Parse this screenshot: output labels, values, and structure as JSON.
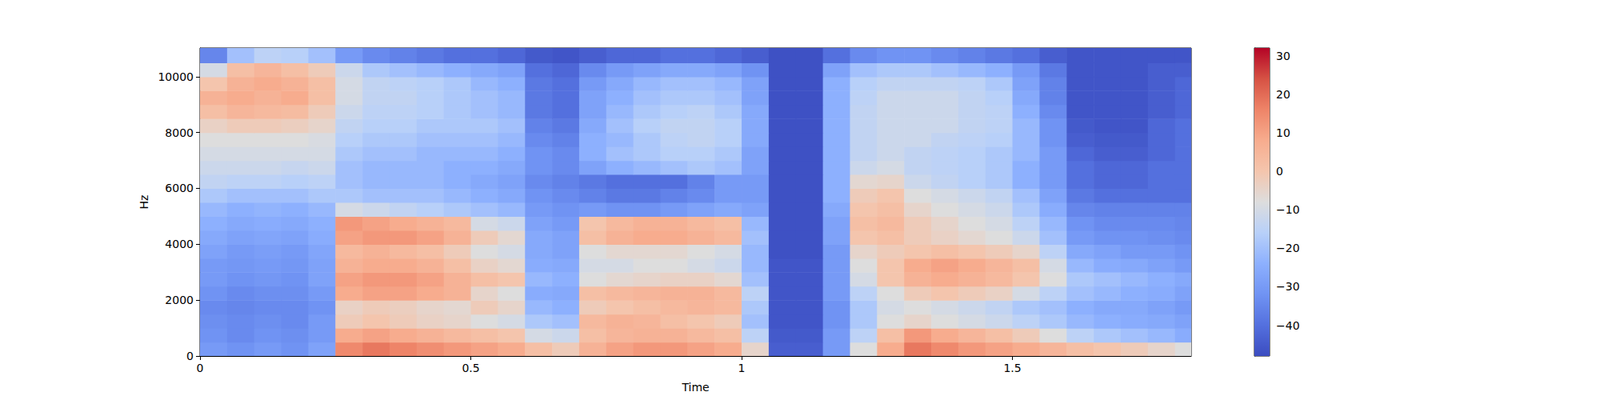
{
  "chart_data": {
    "type": "heatmap",
    "xlabel": "Time",
    "ylabel": "Hz",
    "xlim": [
      0,
      1.83
    ],
    "xticks": [
      0,
      0.5,
      1,
      1.5
    ],
    "ylim": [
      0,
      11025
    ],
    "yticks": [
      0,
      2000,
      4000,
      6000,
      8000,
      10000
    ],
    "grid": false,
    "time_bins": [
      0,
      0.05,
      0.1,
      0.15,
      0.2,
      0.25,
      0.3,
      0.35,
      0.4,
      0.45,
      0.5,
      0.55,
      0.6,
      0.65,
      0.7,
      0.75,
      0.8,
      0.85,
      0.9,
      0.95,
      1.0,
      1.05,
      1.1,
      1.15,
      1.2,
      1.25,
      1.3,
      1.35,
      1.4,
      1.45,
      1.5,
      1.55,
      1.6,
      1.65,
      1.7,
      1.75,
      1.8,
      1.83
    ],
    "freq_bins": [
      0,
      500,
      1000,
      1500,
      2000,
      2500,
      3000,
      3500,
      4000,
      4500,
      5000,
      5500,
      6000,
      6500,
      7000,
      7500,
      8000,
      8500,
      9000,
      9500,
      10000,
      10500,
      11025
    ],
    "cells": [
      [
        -30,
        -32,
        -30,
        -32,
        -28,
        15,
        18,
        16,
        14,
        12,
        10,
        8,
        2,
        -2,
        6,
        10,
        12,
        12,
        10,
        8,
        -5,
        -44,
        -44,
        -30,
        -8,
        8,
        18,
        15,
        12,
        10,
        8,
        5,
        2,
        0,
        -2,
        -5,
        -8
      ],
      [
        -32,
        -34,
        -32,
        -33,
        -30,
        8,
        10,
        8,
        6,
        4,
        2,
        0,
        -10,
        -12,
        2,
        5,
        6,
        6,
        4,
        2,
        -15,
        -45,
        -45,
        -30,
        -15,
        2,
        12,
        8,
        5,
        2,
        -2,
        -8,
        -15,
        -18,
        -20,
        -22,
        -25
      ],
      [
        -33,
        -34,
        -33,
        -34,
        -30,
        -2,
        0,
        -2,
        -4,
        -5,
        -8,
        -10,
        -18,
        -20,
        4,
        6,
        5,
        2,
        0,
        -2,
        -20,
        -46,
        -46,
        -32,
        -18,
        -8,
        -5,
        -8,
        -10,
        -12,
        -15,
        -18,
        -22,
        -24,
        -25,
        -26,
        -28
      ],
      [
        -34,
        -35,
        -34,
        -34,
        -32,
        -4,
        -2,
        -3,
        -5,
        -6,
        -2,
        -5,
        -22,
        -24,
        -2,
        0,
        2,
        4,
        5,
        4,
        -18,
        -46,
        -46,
        -32,
        -18,
        -10,
        -8,
        -10,
        -12,
        -14,
        -18,
        -20,
        -24,
        -26,
        -26,
        -28,
        -30
      ],
      [
        -32,
        -34,
        -33,
        -33,
        -30,
        8,
        10,
        10,
        8,
        6,
        -5,
        -8,
        -25,
        -26,
        2,
        4,
        5,
        6,
        6,
        4,
        -15,
        -46,
        -46,
        -30,
        -15,
        -8,
        -2,
        0,
        -2,
        -4,
        -10,
        -15,
        -20,
        -22,
        -24,
        -25,
        -28
      ],
      [
        -30,
        -32,
        -31,
        -32,
        -28,
        10,
        12,
        12,
        10,
        6,
        2,
        0,
        -22,
        -24,
        -8,
        -6,
        -5,
        -4,
        -4,
        -6,
        -20,
        -46,
        -46,
        -30,
        -10,
        0,
        6,
        8,
        6,
        4,
        0,
        -8,
        -18,
        -20,
        -22,
        -24,
        -26
      ],
      [
        -30,
        -31,
        -30,
        -31,
        -28,
        6,
        8,
        8,
        6,
        2,
        -4,
        -6,
        -25,
        -26,
        -10,
        -10,
        -8,
        -8,
        -10,
        -12,
        -22,
        -46,
        -46,
        -30,
        -8,
        0,
        8,
        10,
        8,
        5,
        2,
        -10,
        -22,
        -25,
        -26,
        -28,
        -30
      ],
      [
        -28,
        -30,
        -29,
        -30,
        -27,
        4,
        6,
        4,
        2,
        -2,
        -8,
        -10,
        -26,
        -28,
        -8,
        -6,
        -6,
        -6,
        -8,
        -10,
        -22,
        -47,
        -47,
        -30,
        -5,
        -2,
        0,
        2,
        0,
        -2,
        -5,
        -15,
        -26,
        -28,
        -30,
        -30,
        -32
      ],
      [
        -26,
        -28,
        -27,
        -28,
        -25,
        10,
        12,
        12,
        10,
        6,
        -2,
        -6,
        -26,
        -28,
        2,
        6,
        8,
        8,
        6,
        4,
        -20,
        -47,
        -47,
        -28,
        0,
        2,
        -2,
        -4,
        -6,
        -8,
        -12,
        -20,
        -30,
        -32,
        -32,
        -33,
        -34
      ],
      [
        -24,
        -26,
        -25,
        -26,
        -24,
        12,
        10,
        8,
        6,
        4,
        -10,
        -12,
        -28,
        -30,
        0,
        4,
        6,
        6,
        4,
        2,
        -22,
        -47,
        -47,
        -28,
        2,
        4,
        -2,
        -5,
        -8,
        -10,
        -15,
        -22,
        -32,
        -34,
        -34,
        -34,
        -35
      ],
      [
        -22,
        -24,
        -23,
        -24,
        -22,
        -10,
        -12,
        -14,
        -16,
        -18,
        -20,
        -22,
        -30,
        -32,
        -30,
        -32,
        -32,
        -30,
        -28,
        -26,
        -28,
        -47,
        -47,
        -26,
        0,
        2,
        -5,
        -8,
        -10,
        -12,
        -18,
        -25,
        -35,
        -36,
        -36,
        -36,
        -36
      ],
      [
        -18,
        -20,
        -20,
        -20,
        -18,
        -18,
        -20,
        -20,
        -20,
        -22,
        -24,
        -26,
        -32,
        -34,
        -36,
        -38,
        -38,
        -36,
        -34,
        -30,
        -30,
        -47,
        -47,
        -24,
        -2,
        0,
        -8,
        -10,
        -12,
        -14,
        -20,
        -28,
        -38,
        -40,
        -40,
        -40,
        -40
      ],
      [
        -14,
        -15,
        -15,
        -16,
        -15,
        -20,
        -22,
        -22,
        -22,
        -24,
        -26,
        -28,
        -34,
        -36,
        -38,
        -40,
        -40,
        -40,
        -36,
        -30,
        -30,
        -47,
        -47,
        -24,
        -6,
        -5,
        -12,
        -14,
        -16,
        -18,
        -24,
        -30,
        -40,
        -42,
        -42,
        -40,
        -40
      ],
      [
        -12,
        -12,
        -12,
        -13,
        -12,
        -20,
        -22,
        -22,
        -22,
        -24,
        -24,
        -26,
        -32,
        -34,
        -28,
        -24,
        -22,
        -20,
        -18,
        -20,
        -28,
        -47,
        -47,
        -24,
        -12,
        -10,
        -14,
        -15,
        -16,
        -18,
        -24,
        -30,
        -40,
        -42,
        -42,
        -40,
        -40
      ],
      [
        -10,
        -10,
        -10,
        -10,
        -10,
        -18,
        -20,
        -20,
        -22,
        -22,
        -22,
        -24,
        -32,
        -34,
        -24,
        -20,
        -18,
        -16,
        -16,
        -18,
        -28,
        -47,
        -47,
        -24,
        -14,
        -12,
        -14,
        -15,
        -16,
        -18,
        -22,
        -30,
        -42,
        -44,
        -44,
        -42,
        -40
      ],
      [
        -8,
        -8,
        -8,
        -8,
        -9,
        -16,
        -18,
        -18,
        -20,
        -20,
        -20,
        -22,
        -34,
        -36,
        -24,
        -22,
        -18,
        -15,
        -14,
        -16,
        -26,
        -47,
        -47,
        -24,
        -14,
        -12,
        -12,
        -14,
        -15,
        -16,
        -22,
        -32,
        -44,
        -45,
        -45,
        -42,
        -40
      ],
      [
        -4,
        -2,
        -2,
        -3,
        -5,
        -14,
        -16,
        -16,
        -18,
        -18,
        -18,
        -20,
        -36,
        -38,
        -26,
        -20,
        -16,
        -14,
        -14,
        -16,
        -26,
        -47,
        -47,
        -24,
        -14,
        -12,
        -12,
        -12,
        -14,
        -15,
        -22,
        -32,
        -45,
        -46,
        -46,
        -42,
        -40
      ],
      [
        2,
        5,
        4,
        3,
        -2,
        -12,
        -15,
        -15,
        -16,
        -18,
        -20,
        -22,
        -38,
        -40,
        -28,
        -22,
        -18,
        -16,
        -15,
        -18,
        -26,
        -47,
        -47,
        -24,
        -14,
        -12,
        -12,
        -12,
        -14,
        -15,
        -24,
        -34,
        -46,
        -46,
        -46,
        -44,
        -42
      ],
      [
        6,
        8,
        6,
        8,
        2,
        -10,
        -14,
        -14,
        -16,
        -18,
        -20,
        -22,
        -38,
        -40,
        -28,
        -24,
        -20,
        -18,
        -18,
        -20,
        -28,
        -47,
        -47,
        -24,
        -15,
        -12,
        -12,
        -12,
        -14,
        -16,
        -26,
        -36,
        -46,
        -46,
        -46,
        -44,
        -42
      ],
      [
        0,
        6,
        8,
        6,
        2,
        -10,
        -14,
        -15,
        -16,
        -18,
        -22,
        -24,
        -38,
        -40,
        -30,
        -26,
        -22,
        -20,
        -20,
        -22,
        -28,
        -47,
        -47,
        -24,
        -16,
        -14,
        -14,
        -14,
        -15,
        -18,
        -28,
        -36,
        -46,
        -46,
        -46,
        -44,
        -42
      ],
      [
        -10,
        2,
        5,
        2,
        -2,
        -12,
        -18,
        -20,
        -22,
        -24,
        -26,
        -28,
        -40,
        -42,
        -34,
        -30,
        -28,
        -26,
        -26,
        -28,
        -32,
        -47,
        -47,
        -28,
        -20,
        -18,
        -18,
        -20,
        -22,
        -24,
        -30,
        -38,
        -46,
        -46,
        -46,
        -44,
        -44
      ],
      [
        -35,
        -20,
        -15,
        -16,
        -20,
        -30,
        -34,
        -36,
        -38,
        -40,
        -40,
        -42,
        -45,
        -46,
        -44,
        -42,
        -42,
        -40,
        -40,
        -42,
        -44,
        -47,
        -47,
        -40,
        -34,
        -32,
        -32,
        -34,
        -36,
        -38,
        -40,
        -44,
        -46,
        -46,
        -46,
        -46,
        -46
      ]
    ],
    "colorbar": {
      "lim": [
        -48,
        32
      ],
      "ticks": [
        {
          "value": -40,
          "label": "−40"
        },
        {
          "value": -30,
          "label": "−30"
        },
        {
          "value": -20,
          "label": "−20"
        },
        {
          "value": -10,
          "label": "−10"
        },
        0,
        10,
        20,
        30
      ]
    }
  }
}
